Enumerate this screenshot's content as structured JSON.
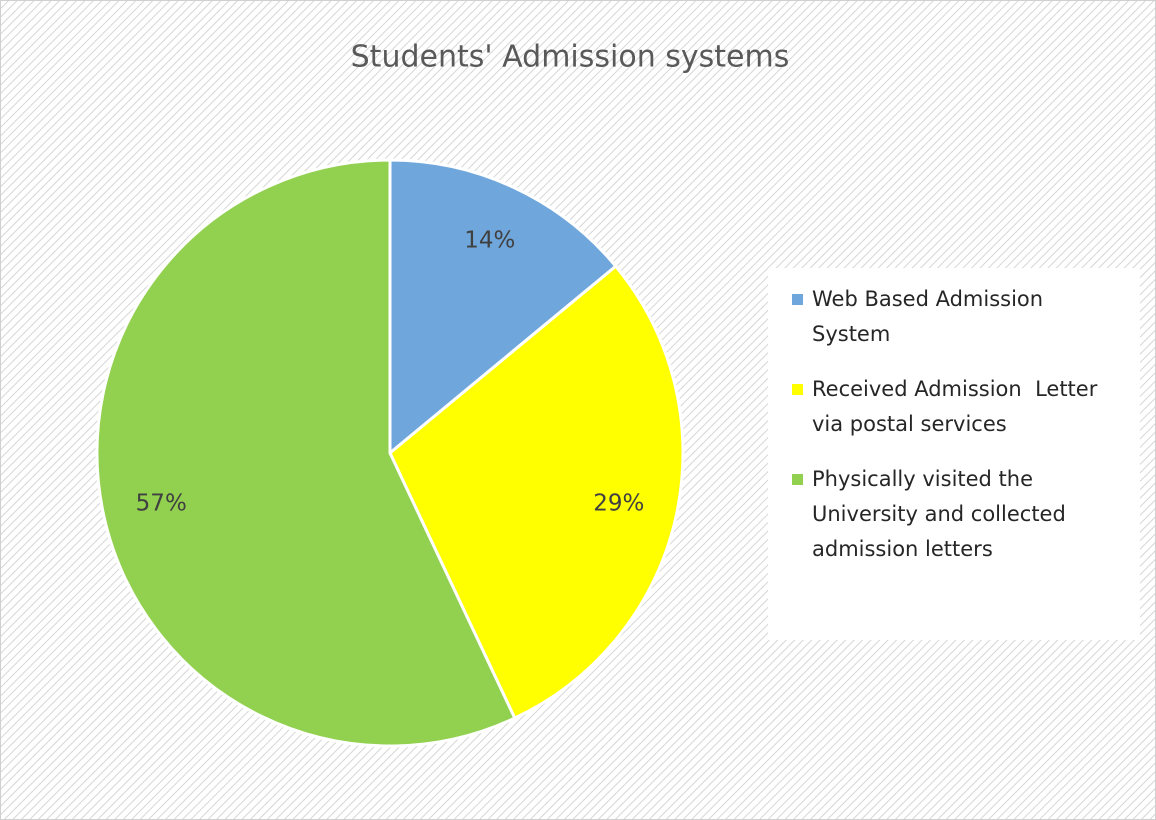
{
  "chart_data": {
    "type": "pie",
    "title": "Students' Admission systems",
    "categories": [
      "Web Based Admission System",
      "Received Admission  Letter via postal services",
      "Physically visited the University and collected admission letters"
    ],
    "values": [
      14,
      29,
      57
    ],
    "value_labels": [
      "14%",
      "29%",
      "57%"
    ],
    "colors": [
      "#6fa7dc",
      "#ffff00",
      "#92d050"
    ],
    "legend": "right"
  }
}
